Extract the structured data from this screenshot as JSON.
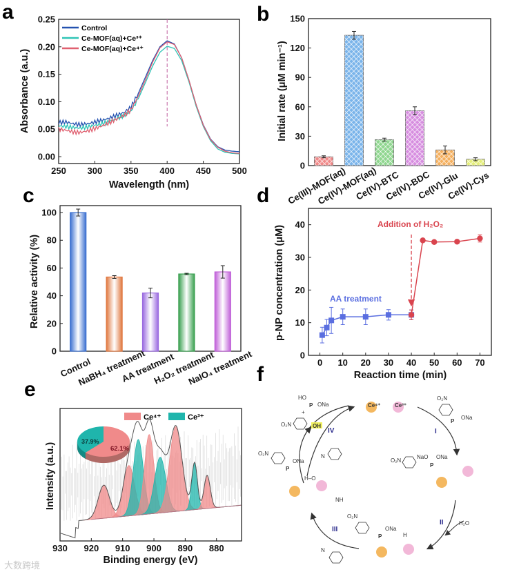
{
  "panel_labels": [
    "a",
    "b",
    "c",
    "d",
    "e",
    "f"
  ],
  "chart_data": [
    {
      "id": "a",
      "type": "line",
      "xlabel": "Wavelength (nm)",
      "ylabel": "Absorbance (a.u.)",
      "xlim": [
        250,
        500
      ],
      "ylim": [
        -0.0125,
        0.25
      ],
      "xticks": [
        250,
        300,
        350,
        400,
        450,
        500
      ],
      "yticks": [
        "0.00",
        "0.05",
        "0.10",
        "0.15",
        "0.20",
        "0.25"
      ],
      "legend_position": "top-left",
      "reference_line_x": 400,
      "x": [
        250,
        260,
        270,
        280,
        290,
        300,
        310,
        320,
        330,
        340,
        350,
        360,
        370,
        380,
        390,
        400,
        410,
        420,
        430,
        440,
        450,
        460,
        470,
        480,
        490,
        500
      ],
      "series": [
        {
          "name": "Control",
          "color": "#2452b0",
          "values": [
            0.062,
            0.063,
            0.06,
            0.058,
            0.06,
            0.063,
            0.066,
            0.07,
            0.075,
            0.08,
            0.09,
            0.115,
            0.145,
            0.175,
            0.2,
            0.211,
            0.205,
            0.18,
            0.14,
            0.095,
            0.058,
            0.032,
            0.018,
            0.012,
            0.01,
            0.009
          ]
        },
        {
          "name": "Ce-MOF(aq)+Ce³⁺",
          "color": "#2ec4b6",
          "values": [
            0.056,
            0.055,
            0.053,
            0.052,
            0.054,
            0.057,
            0.06,
            0.064,
            0.069,
            0.075,
            0.083,
            0.105,
            0.135,
            0.165,
            0.19,
            0.201,
            0.197,
            0.175,
            0.137,
            0.092,
            0.055,
            0.029,
            0.014,
            0.008,
            0.006,
            0.005
          ]
        },
        {
          "name": "Ce-MOF(aq)+Ce⁴⁺",
          "color": "#e06070",
          "values": [
            0.05,
            0.048,
            0.045,
            0.044,
            0.047,
            0.051,
            0.056,
            0.062,
            0.068,
            0.075,
            0.085,
            0.11,
            0.14,
            0.172,
            0.198,
            0.209,
            0.204,
            0.18,
            0.14,
            0.095,
            0.057,
            0.031,
            0.017,
            0.01,
            0.007,
            0.006
          ]
        }
      ]
    },
    {
      "id": "b",
      "type": "bar",
      "ylabel": "Initial rate (μM min⁻¹)",
      "ylim": [
        0,
        150
      ],
      "yticks": [
        "0",
        "30",
        "60",
        "90",
        "120",
        "150"
      ],
      "categories": [
        "Ce(III)-MOF(aq)",
        "Ce(IV)-MOF(aq)",
        "Ce(IV)-BTC",
        "Ce(IV)-BDC",
        "Ce(IV)-Glu",
        "Ce(IV)-Cys"
      ],
      "values": [
        9,
        133,
        26.5,
        56,
        16,
        6.5
      ],
      "errors": [
        1,
        4,
        1.5,
        4,
        4,
        1.5
      ],
      "colors": [
        "#f08a8a",
        "#7ab4ea",
        "#8fd68f",
        "#d78ee0",
        "#f4b060",
        "#e4ee7a"
      ]
    },
    {
      "id": "c",
      "type": "bar",
      "ylabel": "Relative activity (%)",
      "ylim": [
        0,
        105
      ],
      "yticks": [
        "0",
        "20",
        "40",
        "60",
        "80",
        "100"
      ],
      "categories": [
        "Control",
        "NaBH₄ treatment",
        "AA treatment",
        "H₂O₂ treatment",
        "NaIO₄ treatment"
      ],
      "values": [
        100,
        53.5,
        42,
        55.7,
        57.2
      ],
      "errors": [
        2.5,
        1,
        3.5,
        0.5,
        4.5
      ],
      "colors": [
        "#3a6fd0",
        "#e07840",
        "#9a6ae0",
        "#3aa050",
        "#c060d8"
      ]
    },
    {
      "id": "d",
      "type": "line",
      "xlabel": "Reaction time (min)",
      "ylabel": "p-NP concentration (μM)",
      "xlim": [
        -5,
        75
      ],
      "ylim": [
        0,
        45
      ],
      "xticks": [
        0,
        10,
        20,
        30,
        40,
        50,
        60,
        70
      ],
      "yticks": [
        "0",
        "10",
        "20",
        "30",
        "40"
      ],
      "annotations": [
        "AA treatment",
        "Addition of H₂O₂"
      ],
      "event_x": 40,
      "series": [
        {
          "name": "AA treatment",
          "color": "#5a6ee0",
          "marker": "square",
          "x": [
            1,
            3,
            5,
            10,
            20,
            30,
            40
          ],
          "values": [
            6.2,
            8.5,
            10.7,
            11.8,
            11.8,
            12.4,
            12.4
          ],
          "errors": [
            2.4,
            2.5,
            4,
            2.4,
            2.4,
            1.6,
            1.5
          ]
        },
        {
          "name": "Addition of H₂O₂",
          "color": "#d9444e",
          "marker": "circle",
          "x": [
            40,
            45,
            50,
            60,
            70
          ],
          "values": [
            12.4,
            35.2,
            34.7,
            34.8,
            35.8
          ],
          "errors": [
            1.5,
            0.3,
            0.3,
            0.3,
            1.1
          ]
        }
      ]
    },
    {
      "id": "e",
      "type": "area",
      "xlabel": "Binding energy (eV)",
      "ylabel": "Intensity (a.u.)",
      "xlim": [
        930,
        872
      ],
      "ylim": [
        0,
        100
      ],
      "xticks": [
        930,
        920,
        910,
        900,
        890,
        880
      ],
      "legend": [
        "Ce⁴⁺",
        "Ce³⁺"
      ],
      "legend_position": "top-right",
      "colors": {
        "Ce4": "#f08a8a",
        "Ce3": "#1fb5ac"
      },
      "peaks": [
        {
          "species": "Ce4",
          "center": 916,
          "height": 25,
          "sigma": 1.8
        },
        {
          "species": "Ce4",
          "center": 908,
          "height": 38,
          "sigma": 1.8
        },
        {
          "species": "Ce3",
          "center": 905,
          "height": 57,
          "sigma": 1.6
        },
        {
          "species": "Ce4",
          "center": 901.5,
          "height": 60,
          "sigma": 1.5
        },
        {
          "species": "Ce3",
          "center": 898,
          "height": 42,
          "sigma": 1.8
        },
        {
          "species": "Ce4",
          "center": 893,
          "height": 64,
          "sigma": 2.0
        },
        {
          "species": "Ce3",
          "center": 887,
          "height": 35,
          "sigma": 0.9
        },
        {
          "species": "Ce4",
          "center": 883,
          "height": 25,
          "sigma": 1.0
        }
      ],
      "pie": {
        "type": "pie",
        "labels": [
          "Ce⁴⁺",
          "Ce³⁺"
        ],
        "values": [
          62.1,
          37.9
        ],
        "value_labels": [
          "62.1%",
          "37.9%"
        ]
      }
    }
  ],
  "scheme_f": {
    "steps": [
      "I",
      "II",
      "III",
      "IV"
    ],
    "metal_labels": [
      "Ce⁴⁺",
      "Ce³⁺"
    ],
    "reagents": {
      "water": "H₂O",
      "hydroxyl": "OH",
      "nitro": "O₂N"
    },
    "fragments": [
      "HO",
      "ONa",
      "O",
      "P",
      "NaO",
      "H",
      "N",
      "NH",
      "H–O",
      "+"
    ]
  },
  "watermark": "大数跨境"
}
